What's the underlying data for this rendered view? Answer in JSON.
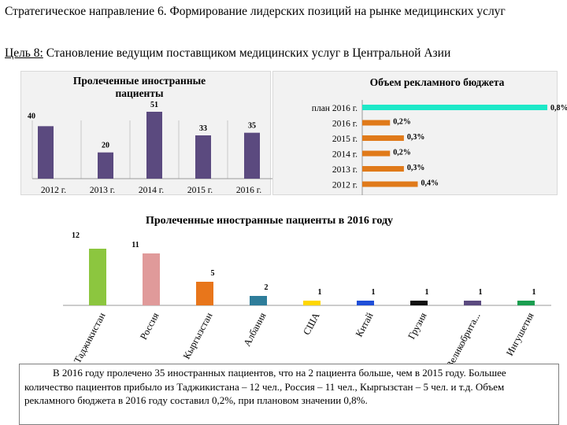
{
  "header": {
    "title": "Стратегическое направление 6. Формирование лидерских позиций на рынке медицинских услуг",
    "goal_prefix": "Цель 8:",
    "goal_text": " Становление ведущим поставщиком медицинских услуг в Центральной Азии"
  },
  "chart_data": [
    {
      "type": "bar",
      "title": "Пролеченные иностранные пациенты",
      "categories": [
        "2012 г.",
        "2013 г.",
        "2014 г.",
        "2015 г.",
        "2016 г."
      ],
      "values": [
        40,
        20,
        51,
        33,
        35
      ],
      "colors": {
        "bar": "#5b4a7f"
      },
      "grid": true
    },
    {
      "type": "bar",
      "orientation": "horizontal",
      "title": "Объем рекламного бюджета",
      "categories": [
        "план 2016 г.",
        "2016 г.",
        "2015 г.",
        "2014 г.",
        "2013 г.",
        "2012 г."
      ],
      "values": [
        0.8,
        0.2,
        0.3,
        0.2,
        0.3,
        0.4
      ],
      "labels": [
        "0,8%",
        "0,2%",
        "0,3%",
        "0,2%",
        "0,3%",
        "0,4%"
      ],
      "colors": {
        "plan": "#1de9c8",
        "actual": "#e07a1a"
      }
    },
    {
      "type": "bar",
      "title": "Пролеченные иностранные пациенты в 2016 году",
      "categories": [
        "Таджикистан",
        "Россия",
        "Кыргызстан",
        "Албания",
        "США",
        "Китай",
        "Грузия",
        "Великобрита...",
        "Ингушетия"
      ],
      "values": [
        12,
        11,
        5,
        2,
        1,
        1,
        1,
        1,
        1
      ],
      "colors": [
        "#8cc63f",
        "#e09a9a",
        "#e8761b",
        "#2e7d9a",
        "#ffd700",
        "#1f4fd8",
        "#111111",
        "#5b4a7f",
        "#1a9e50"
      ]
    }
  ],
  "note": {
    "text": "В 2016 году пролечено 35 иностранных пациентов, что на 2 пациента больше, чем в 2015 году. Большее количество пациентов прибыло из Таджикистана – 12 чел., Россия – 11 чел., Кыргызстан – 5 чел. и т.д. Объем рекламного бюджета в 2016 году составил 0,2%, при плановом значении 0,8%."
  }
}
